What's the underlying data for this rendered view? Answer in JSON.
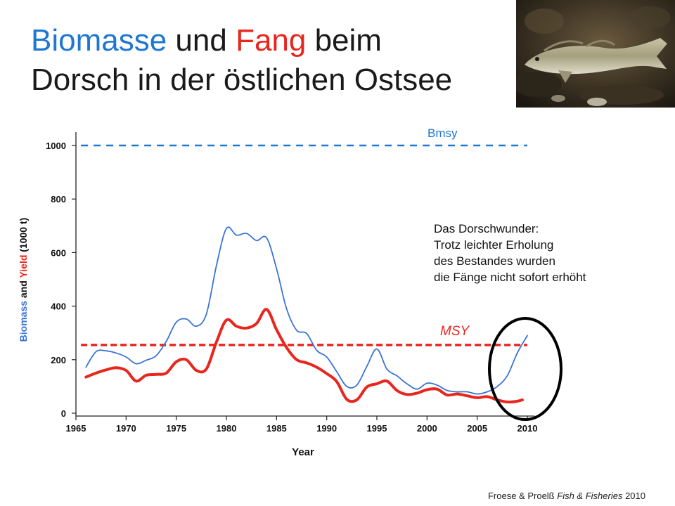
{
  "slide": {
    "title_part1": "Biomasse",
    "title_part2": " und ",
    "title_part3": "Fang",
    "title_part4": " beim",
    "title_line2": "Dorsch in der östlichen Ostsee",
    "annotation_lines": [
      "Das Dorschwunder:",
      "Trotz leichter Erholung",
      "des Bestandes wurden",
      "die Fänge nicht sofort erhöht"
    ],
    "citation_authors": "Froese & Proelß ",
    "citation_journal": "Fish & Fisheries",
    "citation_year": " 2010"
  },
  "chart_data": {
    "type": "line",
    "xlabel": "Year",
    "ylabel_parts": [
      "Biomass",
      " and ",
      "Yield",
      " (1000 t)"
    ],
    "xlim": [
      1965,
      2010
    ],
    "ylim": [
      0,
      1000
    ],
    "x_ticks": [
      1965,
      1970,
      1975,
      1980,
      1985,
      1990,
      1995,
      2000,
      2005,
      2010
    ],
    "y_ticks": [
      0,
      200,
      400,
      600,
      800,
      1000
    ],
    "series": [
      {
        "name": "Biomass",
        "color": "#3a73d6",
        "points": [
          [
            1966,
            172
          ],
          [
            1967,
            230
          ],
          [
            1968,
            233
          ],
          [
            1969,
            225
          ],
          [
            1970,
            210
          ],
          [
            1971,
            185
          ],
          [
            1972,
            198
          ],
          [
            1973,
            215
          ],
          [
            1974,
            268
          ],
          [
            1975,
            340
          ],
          [
            1976,
            352
          ],
          [
            1977,
            325
          ],
          [
            1978,
            370
          ],
          [
            1979,
            550
          ],
          [
            1980,
            690
          ],
          [
            1981,
            665
          ],
          [
            1982,
            672
          ],
          [
            1983,
            645
          ],
          [
            1984,
            655
          ],
          [
            1985,
            540
          ],
          [
            1986,
            390
          ],
          [
            1987,
            310
          ],
          [
            1988,
            298
          ],
          [
            1989,
            235
          ],
          [
            1990,
            210
          ],
          [
            1991,
            155
          ],
          [
            1992,
            100
          ],
          [
            1993,
            105
          ],
          [
            1994,
            175
          ],
          [
            1995,
            240
          ],
          [
            1996,
            165
          ],
          [
            1997,
            140
          ],
          [
            1998,
            110
          ],
          [
            1999,
            90
          ],
          [
            2000,
            112
          ],
          [
            2001,
            105
          ],
          [
            2002,
            85
          ],
          [
            2003,
            80
          ],
          [
            2004,
            80
          ],
          [
            2005,
            72
          ],
          [
            2006,
            80
          ],
          [
            2007,
            100
          ],
          [
            2008,
            140
          ],
          [
            2009,
            225
          ],
          [
            2010,
            290
          ]
        ]
      },
      {
        "name": "Yield",
        "color": "#e8261e",
        "points": [
          [
            1966,
            135
          ],
          [
            1967,
            150
          ],
          [
            1968,
            162
          ],
          [
            1969,
            170
          ],
          [
            1970,
            160
          ],
          [
            1971,
            120
          ],
          [
            1972,
            142
          ],
          [
            1973,
            145
          ],
          [
            1974,
            150
          ],
          [
            1975,
            192
          ],
          [
            1976,
            200
          ],
          [
            1977,
            160
          ],
          [
            1978,
            165
          ],
          [
            1979,
            265
          ],
          [
            1980,
            348
          ],
          [
            1981,
            325
          ],
          [
            1982,
            318
          ],
          [
            1983,
            335
          ],
          [
            1984,
            388
          ],
          [
            1985,
            312
          ],
          [
            1986,
            245
          ],
          [
            1987,
            200
          ],
          [
            1988,
            188
          ],
          [
            1989,
            172
          ],
          [
            1990,
            148
          ],
          [
            1991,
            118
          ],
          [
            1992,
            52
          ],
          [
            1993,
            50
          ],
          [
            1994,
            98
          ],
          [
            1995,
            110
          ],
          [
            1996,
            120
          ],
          [
            1997,
            85
          ],
          [
            1998,
            70
          ],
          [
            1999,
            75
          ],
          [
            2000,
            88
          ],
          [
            2001,
            90
          ],
          [
            2002,
            68
          ],
          [
            2003,
            72
          ],
          [
            2004,
            65
          ],
          [
            2005,
            58
          ],
          [
            2006,
            62
          ],
          [
            2007,
            50
          ],
          [
            2008,
            42
          ],
          [
            2009,
            45
          ],
          [
            2009.5,
            50
          ]
        ]
      }
    ],
    "reference_lines": [
      {
        "label": "Bmsy",
        "value": 1000,
        "color": "#1f77d0",
        "from": 1965.5,
        "to": 2010
      },
      {
        "label": "MSY",
        "value": 255,
        "color": "#e8261e",
        "from": 1965.5,
        "to": 2010
      }
    ]
  }
}
